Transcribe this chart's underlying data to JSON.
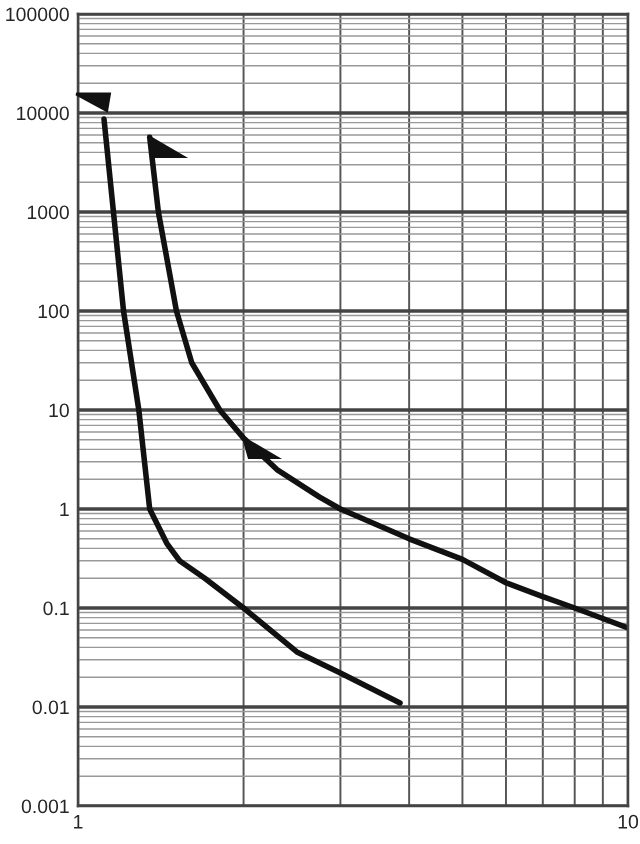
{
  "chart_data": {
    "type": "line",
    "log": "xy",
    "xlim": [
      1,
      10
    ],
    "ylim": [
      0.001,
      100000
    ],
    "xticks": [
      1,
      10
    ],
    "yticks": [
      {
        "value": 0.001,
        "label": "0.001"
      },
      {
        "value": 0.01,
        "label": "0.01"
      },
      {
        "value": 0.1,
        "label": "0.1"
      },
      {
        "value": 1,
        "label": "1"
      },
      {
        "value": 10,
        "label": "10"
      },
      {
        "value": 100,
        "label": "100"
      },
      {
        "value": 1000,
        "label": "1000"
      },
      {
        "value": 10000,
        "label": "10000"
      },
      {
        "value": 100000,
        "label": "100000"
      }
    ],
    "grid": true,
    "line_style": "solid",
    "marker": "none",
    "series": [
      {
        "color": "#111111",
        "x": [
          1.115,
          1.16,
          1.21,
          1.29,
          1.35,
          1.45,
          1.53,
          1.7,
          2.0,
          2.5,
          3.0,
          3.85
        ],
        "values": [
          8700,
          1000,
          100,
          10,
          1,
          0.45,
          0.3,
          0.2,
          0.1,
          0.036,
          0.022,
          0.011
        ]
      },
      {
        "color": "#111111",
        "x": [
          1.35,
          1.4,
          1.51,
          1.61,
          1.81,
          2.0,
          2.3,
          2.75,
          3.0,
          4.0,
          5.0,
          6.0,
          7.0,
          8.0,
          10.0
        ],
        "values": [
          5700,
          1000,
          100,
          30,
          10,
          5.2,
          2.5,
          1.32,
          1.0,
          0.5,
          0.31,
          0.18,
          0.13,
          0.1,
          0.063
        ]
      }
    ]
  }
}
